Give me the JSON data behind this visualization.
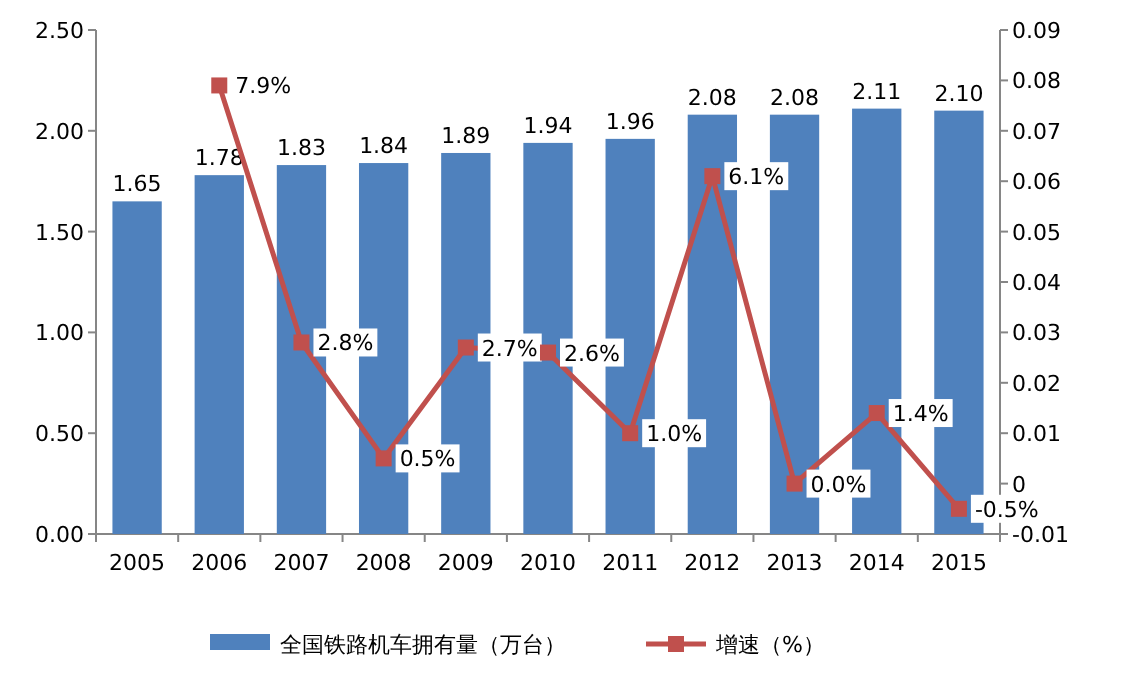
{
  "chart_data": {
    "type": "bar",
    "categories": [
      "2005",
      "2006",
      "2007",
      "2008",
      "2009",
      "2010",
      "2011",
      "2012",
      "2013",
      "2014",
      "2015"
    ],
    "series": [
      {
        "name": "全国铁路机车拥有量（万台）",
        "color": "#4f81bd",
        "values": [
          1.65,
          1.78,
          1.83,
          1.84,
          1.89,
          1.94,
          1.96,
          2.08,
          2.08,
          2.11,
          2.1
        ],
        "value_labels": [
          "1.65",
          "1.78",
          "1.83",
          "1.84",
          "1.89",
          "1.94",
          "1.96",
          "2.08",
          "2.08",
          "2.11",
          "2.10"
        ]
      },
      {
        "name": "增速（%）",
        "type": "line",
        "axis": "y2",
        "color": "#c0504d",
        "values": [
          null,
          0.079,
          0.028,
          0.005,
          0.027,
          0.026,
          0.01,
          0.061,
          0.0,
          0.014,
          -0.005
        ],
        "value_labels": [
          null,
          "7.9%",
          "2.8%",
          "0.5%",
          "2.7%",
          "2.6%",
          "1.0%",
          "6.1%",
          "0.0%",
          "1.4%",
          "-0.5%"
        ]
      }
    ],
    "ylim": [
      0,
      2.5
    ],
    "yticks": [
      {
        "value": 0,
        "label": "0.00"
      },
      {
        "value": 0.5,
        "label": "0.50"
      },
      {
        "value": 1,
        "label": "1.00"
      },
      {
        "value": 1.5,
        "label": "1.50"
      },
      {
        "value": 2,
        "label": "2.00"
      },
      {
        "value": 2.5,
        "label": "2.50"
      }
    ],
    "y2lim": [
      -0.01,
      0.09
    ],
    "y2ticks": [
      -0.01,
      0,
      0.01,
      0.02,
      0.03,
      0.04,
      0.05,
      0.06,
      0.07,
      0.08,
      0.09
    ],
    "marker": "square",
    "legend": "bottom"
  }
}
